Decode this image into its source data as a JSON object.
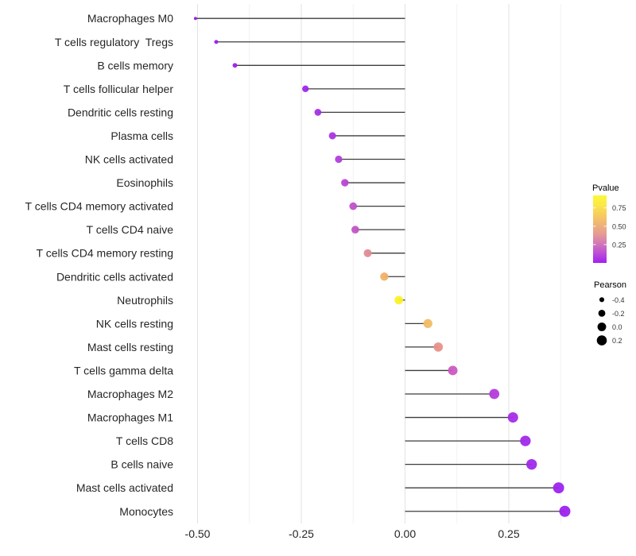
{
  "chart_data": {
    "type": "scatter",
    "subtype": "lollipop",
    "title": "",
    "xlabel": "",
    "ylabel": "",
    "x_axis": {
      "tick_values": [
        -0.5,
        -0.25,
        0,
        0.25
      ],
      "tick_labels": [
        "-0.50",
        "-0.25",
        "0.00",
        "0.25"
      ],
      "minor_gridline_values": [
        -0.375,
        -0.125,
        0.125,
        0.375
      ],
      "range": [
        -0.549,
        0.449
      ],
      "grid": "vertical-only"
    },
    "rows": [
      {
        "label": "Macrophages M0",
        "pearson": -0.505,
        "dot_color": "#991CE9"
      },
      {
        "label": "T cells regulatory  Tregs",
        "pearson": -0.455,
        "dot_color": "#9C20EC"
      },
      {
        "label": "B cells memory",
        "pearson": -0.41,
        "dot_color": "#9D22EC"
      },
      {
        "label": "T cells follicular helper",
        "pearson": -0.24,
        "dot_color": "#A027EA"
      },
      {
        "label": "Dendritic cells resting",
        "pearson": -0.21,
        "dot_color": "#A52FE5"
      },
      {
        "label": "Plasma cells",
        "pearson": -0.175,
        "dot_color": "#AA36E1"
      },
      {
        "label": "NK cells activated",
        "pearson": -0.16,
        "dot_color": "#B03FDC"
      },
      {
        "label": "Eosinophils",
        "pearson": -0.145,
        "dot_color": "#B846D5"
      },
      {
        "label": "T cells CD4 memory activated",
        "pearson": -0.125,
        "dot_color": "#C251C9"
      },
      {
        "label": "T cells CD4 naive",
        "pearson": -0.12,
        "dot_color": "#C353C7"
      },
      {
        "label": "T cells CD4 memory resting",
        "pearson": -0.09,
        "dot_color": "#E18B93"
      },
      {
        "label": "Dendritic cells activated",
        "pearson": -0.05,
        "dot_color": "#F0B168"
      },
      {
        "label": "Neutrophils",
        "pearson": -0.015,
        "dot_color": "#FAF226"
      },
      {
        "label": "NK cells resting",
        "pearson": 0.055,
        "dot_color": "#F1BC66"
      },
      {
        "label": "Mast cells resting",
        "pearson": 0.08,
        "dot_color": "#E89089"
      },
      {
        "label": "T cells gamma delta",
        "pearson": 0.115,
        "dot_color": "#CB58C1"
      },
      {
        "label": "Macrophages M2",
        "pearson": 0.215,
        "dot_color": "#B43BDC"
      },
      {
        "label": "Macrophages M1",
        "pearson": 0.26,
        "dot_color": "#A52DE7"
      },
      {
        "label": "T cells CD8",
        "pearson": 0.29,
        "dot_color": "#A12AEA"
      },
      {
        "label": "B cells naive",
        "pearson": 0.305,
        "dot_color": "#A029EB"
      },
      {
        "label": "Mast cells activated",
        "pearson": 0.37,
        "dot_color": "#9D24EE"
      },
      {
        "label": "Monocytes",
        "pearson": 0.385,
        "dot_color": "#9C22EE"
      }
    ],
    "legends": {
      "pvalue": {
        "title": "Pvalue",
        "tick_labels": [
          "0.75",
          "0.50",
          "0.25"
        ],
        "tick_values": [
          0.75,
          0.5,
          0.25
        ],
        "bar_range": [
          0,
          0.92
        ],
        "gradient_bottom_to_top": [
          "#A21FF0",
          "#BC4FD6",
          "#D377B8",
          "#E59B94",
          "#EFB376",
          "#F6CD5E",
          "#FAE847",
          "#FCF838"
        ],
        "position": "right"
      },
      "pearson": {
        "title": "Pearson",
        "items": [
          {
            "label": "-0.4",
            "value": -0.4
          },
          {
            "label": "-0.2",
            "value": -0.2
          },
          {
            "label": "0.0",
            "value": 0.0
          },
          {
            "label": "0.2",
            "value": 0.2
          }
        ],
        "dot_color": "#000000",
        "position": "right"
      }
    },
    "style": {
      "background": "#FFFFFF",
      "segment_color": "#3D3D3D",
      "major_grid_color": "#E2E2E2",
      "minor_grid_color": "#F2F2F2",
      "axis_text_color": "#262626",
      "legend_text_color": "#333333"
    }
  }
}
